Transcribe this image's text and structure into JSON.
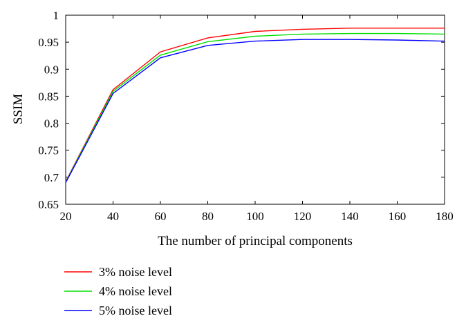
{
  "chart_data": {
    "type": "line",
    "xlabel": "The number of principal components",
    "ylabel": "SSIM",
    "xlim": [
      20,
      180
    ],
    "ylim": [
      0.65,
      1
    ],
    "xticks": [
      "20",
      "40",
      "60",
      "80",
      "100",
      "120",
      "140",
      "160",
      "180"
    ],
    "yticks": [
      "0.65",
      "0.7",
      "0.75",
      "0.8",
      "0.85",
      "0.9",
      "0.95",
      "1"
    ],
    "grid": false,
    "legend_position": "bottom-left",
    "x": [
      20,
      40,
      60,
      80,
      100,
      120,
      140,
      160,
      180
    ],
    "series": [
      {
        "name": "3% noise level",
        "color": "#ff0000",
        "values": [
          0.692,
          0.862,
          0.932,
          0.958,
          0.97,
          0.974,
          0.976,
          0.976,
          0.976
        ]
      },
      {
        "name": "4% noise level",
        "color": "#00e000",
        "values": [
          0.691,
          0.859,
          0.926,
          0.951,
          0.961,
          0.965,
          0.966,
          0.966,
          0.965
        ]
      },
      {
        "name": "5% noise level",
        "color": "#0000ff",
        "values": [
          0.69,
          0.855,
          0.921,
          0.944,
          0.952,
          0.955,
          0.955,
          0.954,
          0.952
        ]
      }
    ]
  }
}
